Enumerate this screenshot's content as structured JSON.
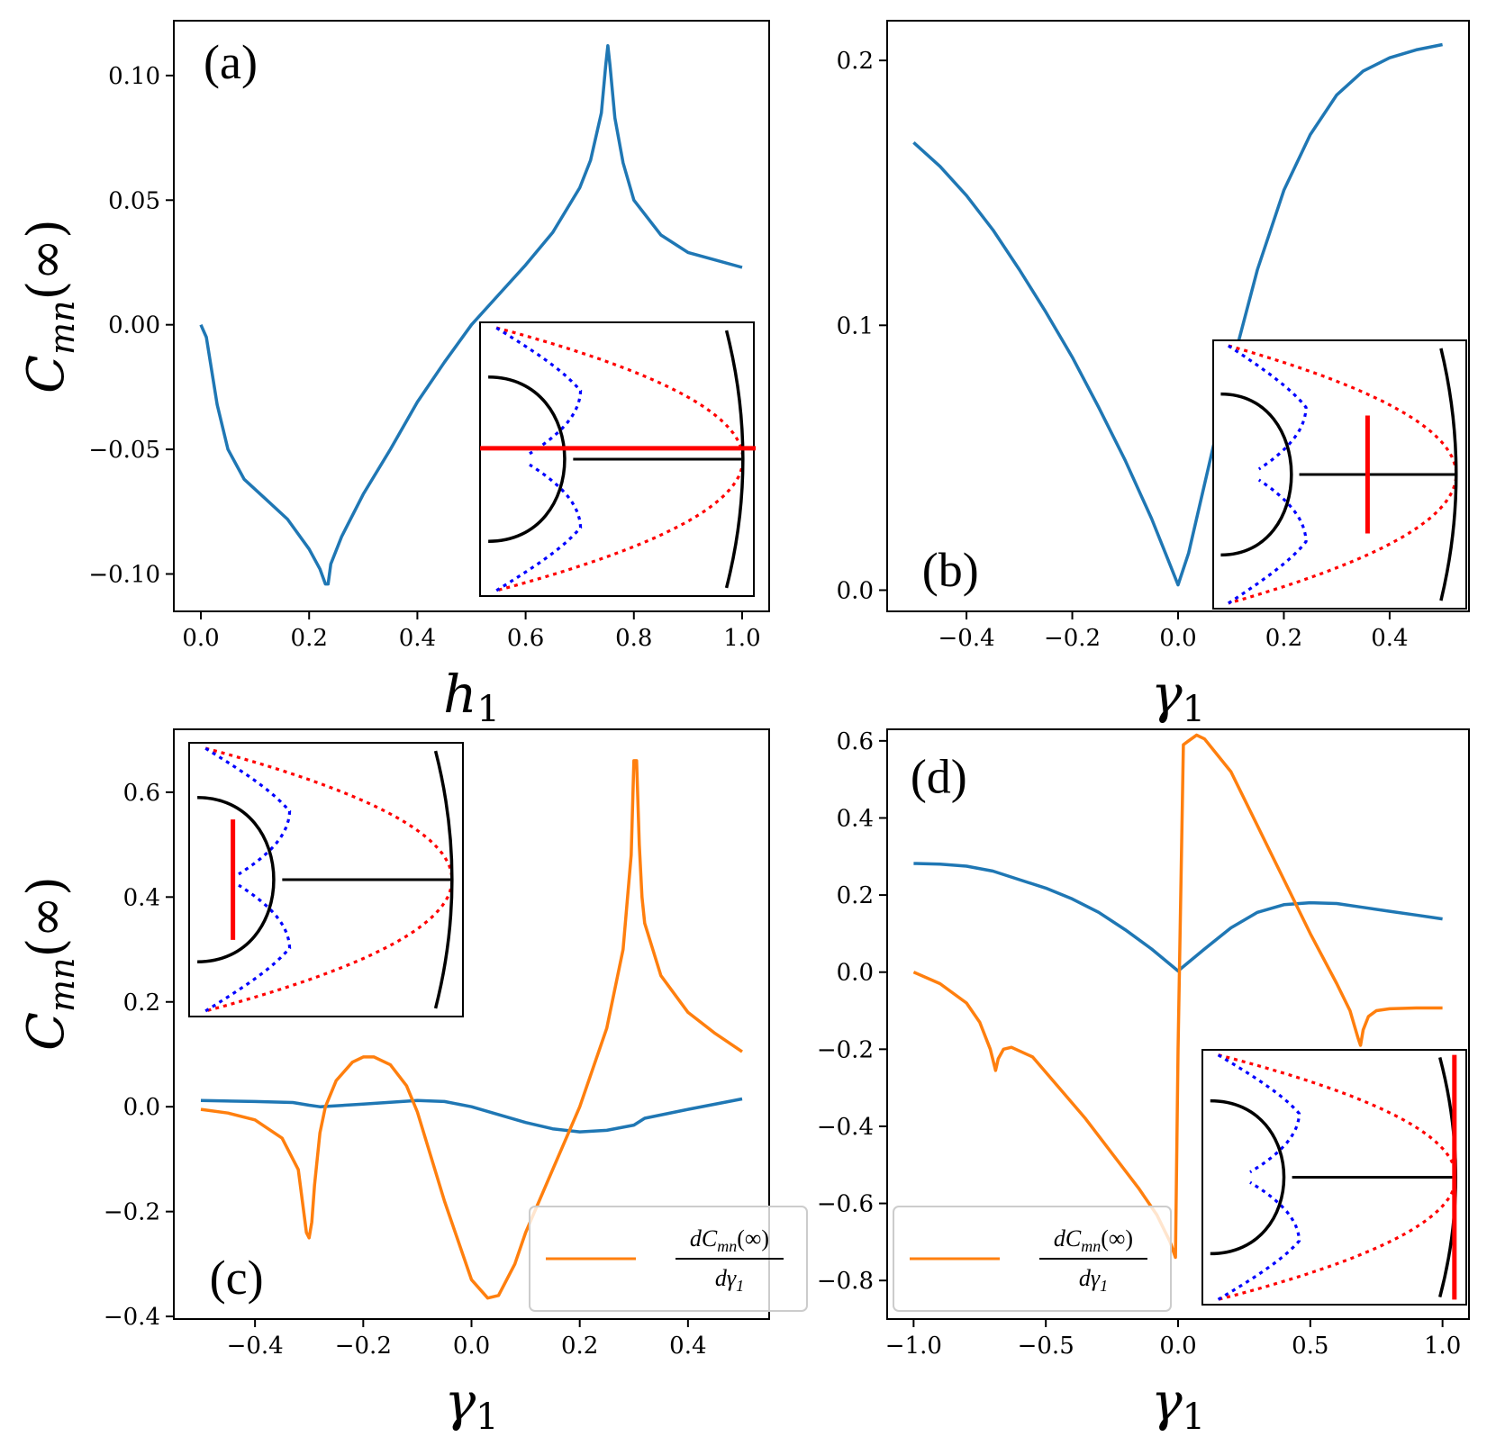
{
  "figure": {
    "y_axis_label_main": "C",
    "y_axis_label_sub": "mn",
    "y_axis_label_arg": "(∞)"
  },
  "colors": {
    "cmn": "#1f77b4",
    "derivative": "#ff7f0e",
    "inset_red": "#ff0000",
    "inset_blue": "#0000ff",
    "inset_black": "#000000"
  },
  "chart_data": [
    {
      "id": "a",
      "type": "line",
      "panel_label": "(a)",
      "xlabel": "h",
      "xlabel_sub": "1",
      "xlim": [
        -0.05,
        1.05
      ],
      "ylim": [
        -0.115,
        0.122
      ],
      "xticks": [
        0.0,
        0.2,
        0.4,
        0.6,
        0.8,
        1.0
      ],
      "xtick_labels": [
        "0.0",
        "0.2",
        "0.4",
        "0.6",
        "0.8",
        "1.0"
      ],
      "yticks": [
        -0.1,
        -0.05,
        0.0,
        0.05,
        0.1
      ],
      "ytick_labels": [
        "−0.10",
        "−0.05",
        "0.00",
        "0.05",
        "0.10"
      ],
      "series": [
        {
          "name": "C_mn(∞)",
          "color": "#1f77b4",
          "x": [
            0.0,
            0.01,
            0.03,
            0.05,
            0.08,
            0.12,
            0.16,
            0.2,
            0.22,
            0.23,
            0.235,
            0.24,
            0.26,
            0.3,
            0.35,
            0.4,
            0.45,
            0.5,
            0.55,
            0.6,
            0.65,
            0.7,
            0.72,
            0.74,
            0.748,
            0.752,
            0.756,
            0.765,
            0.78,
            0.8,
            0.85,
            0.9,
            0.95,
            1.0
          ],
          "y": [
            0.0,
            -0.005,
            -0.032,
            -0.05,
            -0.062,
            -0.07,
            -0.078,
            -0.09,
            -0.098,
            -0.104,
            -0.104,
            -0.096,
            -0.085,
            -0.068,
            -0.05,
            -0.031,
            -0.015,
            0.0,
            0.012,
            0.024,
            0.037,
            0.055,
            0.066,
            0.085,
            0.104,
            0.112,
            0.104,
            0.083,
            0.065,
            0.05,
            0.036,
            0.029,
            0.026,
            0.023
          ]
        }
      ],
      "inset": {
        "position": "lower-right",
        "marker": "horizontal"
      }
    },
    {
      "id": "b",
      "type": "line",
      "panel_label": "(b)",
      "xlabel": "γ",
      "xlabel_sub": "1",
      "xlim": [
        -0.55,
        0.55
      ],
      "ylim": [
        -0.008,
        0.215
      ],
      "xticks": [
        -0.4,
        -0.2,
        0.0,
        0.2,
        0.4
      ],
      "xtick_labels": [
        "−0.4",
        "−0.2",
        "0.0",
        "0.2",
        "0.4"
      ],
      "yticks": [
        0.0,
        0.1,
        0.2
      ],
      "ytick_labels": [
        "0.0",
        "0.1",
        "0.2"
      ],
      "series": [
        {
          "name": "C_mn(∞)",
          "color": "#1f77b4",
          "x": [
            -0.5,
            -0.45,
            -0.4,
            -0.35,
            -0.3,
            -0.25,
            -0.2,
            -0.15,
            -0.1,
            -0.05,
            -0.02,
            0.0,
            0.02,
            0.05,
            0.1,
            0.15,
            0.2,
            0.25,
            0.3,
            0.35,
            0.4,
            0.45,
            0.5
          ],
          "y": [
            0.169,
            0.16,
            0.149,
            0.136,
            0.121,
            0.105,
            0.088,
            0.069,
            0.049,
            0.027,
            0.012,
            0.002,
            0.014,
            0.04,
            0.083,
            0.121,
            0.151,
            0.172,
            0.187,
            0.196,
            0.201,
            0.204,
            0.206
          ]
        }
      ],
      "inset": {
        "position": "lower-right",
        "marker": "vertical-mid"
      }
    },
    {
      "id": "c",
      "type": "line",
      "panel_label": "(c)",
      "xlabel": "γ",
      "xlabel_sub": "1",
      "xlim": [
        -0.55,
        0.55
      ],
      "ylim": [
        -0.405,
        0.72
      ],
      "xticks": [
        -0.4,
        -0.2,
        0.0,
        0.2,
        0.4
      ],
      "xtick_labels": [
        "−0.4",
        "−0.2",
        "0.0",
        "0.2",
        "0.4"
      ],
      "yticks": [
        -0.4,
        -0.2,
        0.0,
        0.2,
        0.4,
        0.6
      ],
      "ytick_labels": [
        "−0.4",
        "−0.2",
        "0.0",
        "0.2",
        "0.4",
        "0.6"
      ],
      "legend": {
        "location": "lower-right",
        "label_num": "dC",
        "label_num_sub": "mn",
        "label_num_arg": "(∞)",
        "label_den": "dγ",
        "label_den_sub": "1"
      },
      "series": [
        {
          "name": "C_mn(∞)",
          "color": "#1f77b4",
          "x": [
            -0.5,
            -0.4,
            -0.33,
            -0.3,
            -0.28,
            -0.2,
            -0.1,
            -0.05,
            0.0,
            0.05,
            0.1,
            0.15,
            0.2,
            0.25,
            0.3,
            0.32,
            0.4,
            0.5
          ],
          "y": [
            0.012,
            0.01,
            0.008,
            0.003,
            0.0,
            0.005,
            0.012,
            0.01,
            0.0,
            -0.015,
            -0.03,
            -0.042,
            -0.048,
            -0.045,
            -0.035,
            -0.022,
            -0.005,
            0.015
          ]
        },
        {
          "name": "dC_mn(∞)/dγ1",
          "color": "#ff7f0e",
          "x": [
            -0.5,
            -0.45,
            -0.4,
            -0.35,
            -0.32,
            -0.31,
            -0.305,
            -0.3,
            -0.295,
            -0.29,
            -0.28,
            -0.27,
            -0.25,
            -0.22,
            -0.2,
            -0.18,
            -0.15,
            -0.12,
            -0.1,
            -0.05,
            0.0,
            0.03,
            0.05,
            0.08,
            0.1,
            0.15,
            0.2,
            0.25,
            0.28,
            0.295,
            0.3,
            0.305,
            0.31,
            0.315,
            0.32,
            0.35,
            0.4,
            0.45,
            0.5
          ],
          "y": [
            -0.005,
            -0.012,
            -0.025,
            -0.06,
            -0.12,
            -0.2,
            -0.24,
            -0.25,
            -0.22,
            -0.15,
            -0.05,
            0.0,
            0.05,
            0.085,
            0.095,
            0.095,
            0.08,
            0.04,
            -0.01,
            -0.18,
            -0.33,
            -0.365,
            -0.36,
            -0.3,
            -0.24,
            -0.12,
            0.0,
            0.15,
            0.3,
            0.48,
            0.66,
            0.66,
            0.5,
            0.4,
            0.35,
            0.25,
            0.18,
            0.14,
            0.105
          ]
        }
      ],
      "inset": {
        "position": "upper-left",
        "marker": "vertical-left"
      }
    },
    {
      "id": "d",
      "type": "line",
      "panel_label": "(d)",
      "xlabel": "γ",
      "xlabel_sub": "1",
      "xlim": [
        -1.1,
        1.1
      ],
      "ylim": [
        -0.9,
        0.63
      ],
      "xticks": [
        -1.0,
        -0.5,
        0.0,
        0.5,
        1.0
      ],
      "xtick_labels": [
        "−1.0",
        "−0.5",
        "0.0",
        "0.5",
        "1.0"
      ],
      "yticks": [
        -0.8,
        -0.6,
        -0.4,
        -0.2,
        0.0,
        0.2,
        0.4,
        0.6
      ],
      "ytick_labels": [
        "−0.8",
        "−0.6",
        "−0.4",
        "−0.2",
        "0.0",
        "0.2",
        "0.4",
        "0.6"
      ],
      "legend": {
        "location": "lower-left",
        "label_num": "dC",
        "label_num_sub": "mn",
        "label_num_arg": "(∞)",
        "label_den": "dγ",
        "label_den_sub": "1"
      },
      "series": [
        {
          "name": "C_mn(∞)",
          "color": "#1f77b4",
          "x": [
            -1.0,
            -0.9,
            -0.8,
            -0.7,
            -0.6,
            -0.5,
            -0.4,
            -0.3,
            -0.2,
            -0.1,
            0.0,
            0.1,
            0.2,
            0.3,
            0.4,
            0.5,
            0.6,
            0.7,
            0.8,
            0.9,
            1.0
          ],
          "y": [
            0.282,
            0.28,
            0.275,
            0.262,
            0.24,
            0.218,
            0.19,
            0.155,
            0.11,
            0.06,
            0.003,
            0.06,
            0.115,
            0.155,
            0.175,
            0.18,
            0.178,
            0.168,
            0.158,
            0.148,
            0.138
          ]
        },
        {
          "name": "dC_mn(∞)/dγ1",
          "color": "#ff7f0e",
          "x": [
            -1.0,
            -0.9,
            -0.8,
            -0.75,
            -0.71,
            -0.69,
            -0.68,
            -0.66,
            -0.63,
            -0.55,
            -0.45,
            -0.35,
            -0.25,
            -0.15,
            -0.08,
            -0.03,
            -0.01,
            0.0,
            0.02,
            0.04,
            0.07,
            0.1,
            0.2,
            0.3,
            0.4,
            0.5,
            0.6,
            0.65,
            0.68,
            0.69,
            0.7,
            0.72,
            0.75,
            0.8,
            0.9,
            1.0
          ],
          "y": [
            0.0,
            -0.03,
            -0.08,
            -0.13,
            -0.2,
            -0.255,
            -0.225,
            -0.2,
            -0.195,
            -0.22,
            -0.3,
            -0.38,
            -0.47,
            -0.56,
            -0.63,
            -0.7,
            -0.74,
            -0.2,
            0.59,
            0.6,
            0.615,
            0.605,
            0.52,
            0.38,
            0.24,
            0.1,
            -0.03,
            -0.1,
            -0.17,
            -0.19,
            -0.15,
            -0.115,
            -0.1,
            -0.095,
            -0.093,
            -0.093
          ]
        }
      ],
      "inset": {
        "position": "lower-right",
        "marker": "vertical-right"
      }
    }
  ]
}
